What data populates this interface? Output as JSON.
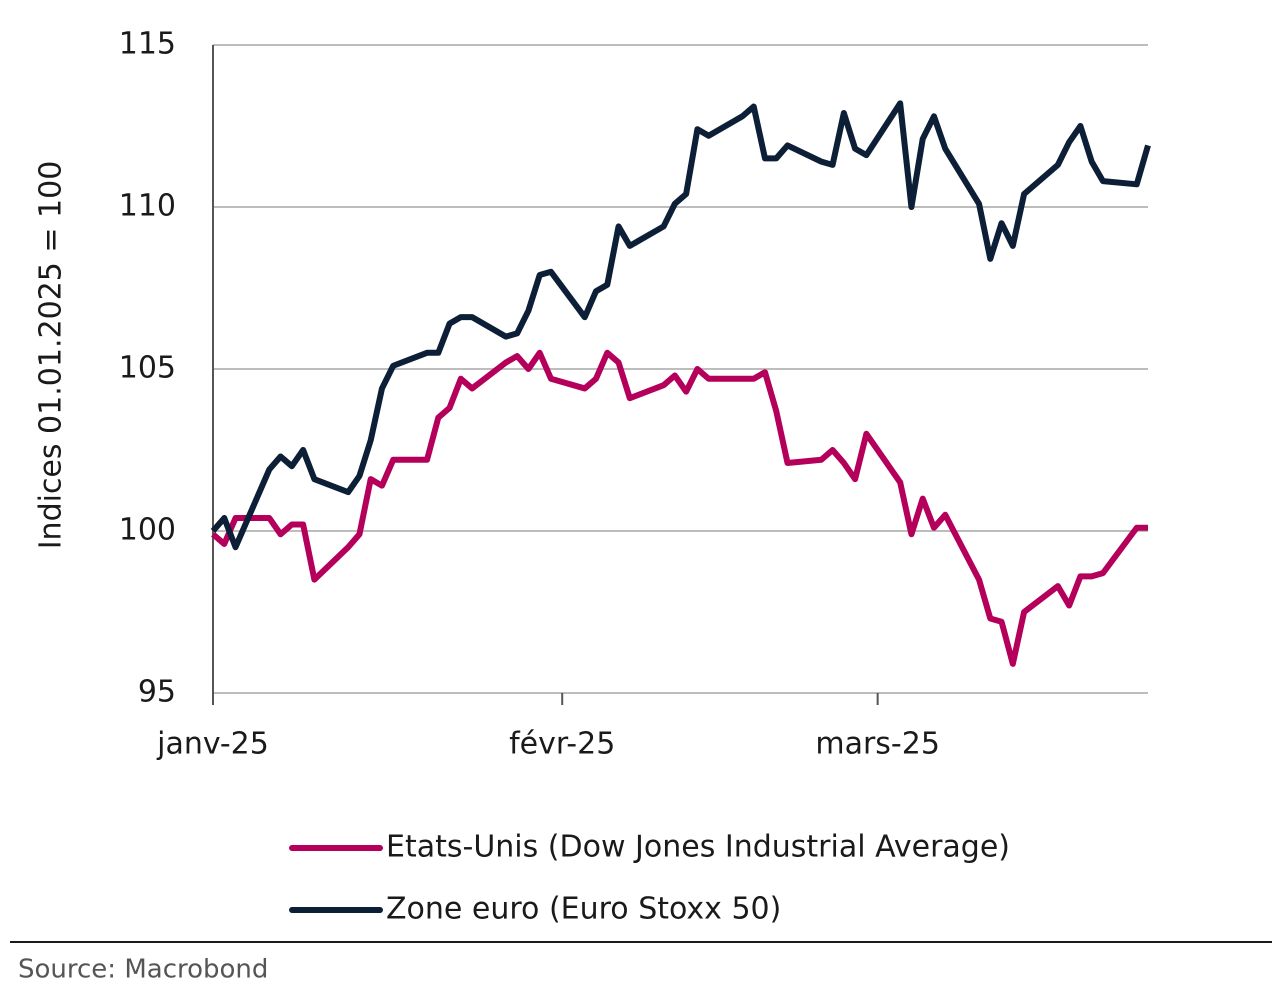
{
  "chart_data": {
    "type": "line",
    "y_label": "Indices 01.01.2025 = 100",
    "source": "Source: Macrobond",
    "x": [
      0,
      1,
      2,
      5,
      6,
      7,
      8,
      9,
      12,
      13,
      14,
      15,
      16,
      19,
      20,
      21,
      22,
      23,
      26,
      27,
      28,
      29,
      30,
      33,
      34,
      35,
      36,
      37,
      40,
      41,
      42,
      43,
      44,
      47,
      48,
      49,
      50,
      51,
      54,
      55,
      56,
      57,
      58,
      61,
      62,
      63,
      64,
      65,
      68,
      69,
      70,
      71,
      72,
      75,
      76,
      77,
      78,
      79,
      82,
      83
    ],
    "xlim": [
      0,
      83
    ],
    "xticks": [
      {
        "value": 0,
        "label": "janv-25"
      },
      {
        "value": 31,
        "label": "févr-25"
      },
      {
        "value": 59,
        "label": "mars-25"
      }
    ],
    "ylim": [
      95,
      115
    ],
    "yticks": [
      95,
      100,
      105,
      110,
      115
    ],
    "grid": true,
    "legend": "bottom",
    "series": [
      {
        "name": "Etats-Unis (Dow Jones Industrial Average)",
        "color": "#b5005b",
        "values": [
          99.9,
          99.6,
          100.4,
          100.4,
          99.9,
          100.2,
          100.2,
          98.5,
          99.5,
          99.9,
          101.6,
          101.4,
          102.2,
          102.2,
          103.5,
          103.8,
          104.7,
          104.4,
          105.2,
          105.4,
          105.0,
          105.5,
          104.7,
          104.4,
          104.7,
          105.5,
          105.2,
          104.1,
          104.5,
          104.8,
          104.3,
          105.0,
          104.7,
          104.7,
          104.7,
          104.9,
          103.7,
          102.1,
          102.2,
          102.5,
          102.1,
          101.6,
          103.0,
          101.5,
          99.9,
          101.0,
          100.1,
          100.5,
          98.5,
          97.3,
          97.2,
          95.9,
          97.5,
          98.3,
          97.7,
          98.6,
          98.6,
          98.7,
          100.1,
          100.1
        ]
      },
      {
        "name": "Zone euro (Euro Stoxx 50)",
        "color": "#0d1f36",
        "values": [
          100,
          100.4,
          99.5,
          101.9,
          102.3,
          102.0,
          102.5,
          101.6,
          101.2,
          101.7,
          102.8,
          104.4,
          105.1,
          105.5,
          105.5,
          106.4,
          106.6,
          106.6,
          106.0,
          106.1,
          106.8,
          107.9,
          108.0,
          106.6,
          107.4,
          107.6,
          109.4,
          108.8,
          109.4,
          110.1,
          110.4,
          112.4,
          112.2,
          112.8,
          113.1,
          111.5,
          111.5,
          111.9,
          111.4,
          111.3,
          112.9,
          111.8,
          111.6,
          113.2,
          110.0,
          112.1,
          112.8,
          111.8,
          110.1,
          108.4,
          109.5,
          108.8,
          110.4,
          111.3,
          112.0,
          112.5,
          111.4,
          110.8,
          110.7,
          111.9
        ]
      }
    ]
  }
}
